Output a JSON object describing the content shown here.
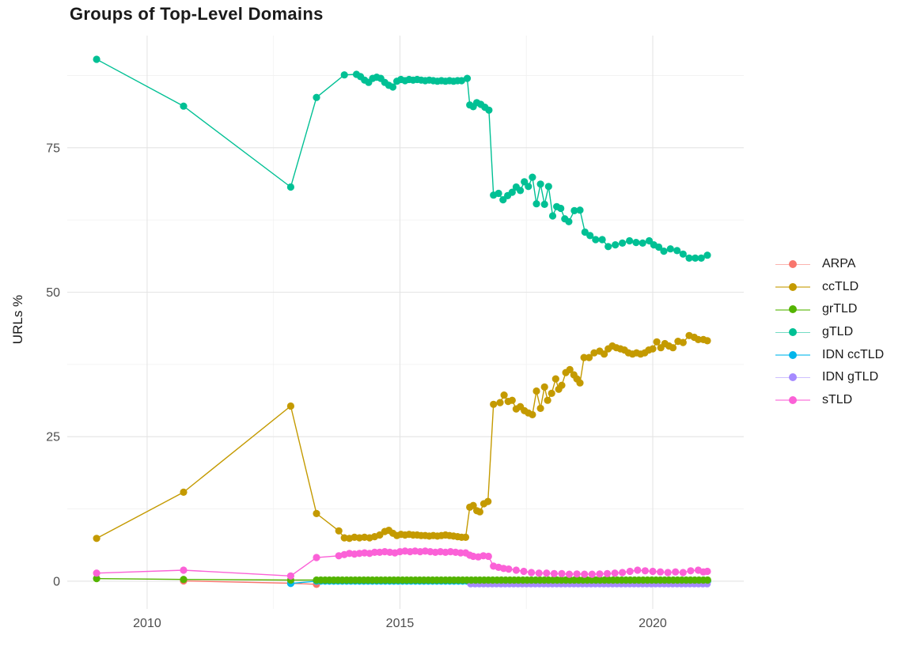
{
  "title": "Groups of Top-Level Domains",
  "chart_data": {
    "type": "line",
    "title": "Groups of Top-Level Domains",
    "xlabel": "",
    "ylabel": "URLs %",
    "grid": "on",
    "background": "#ffffff",
    "major_grid_color": "#e4e4e4",
    "minor_grid_color": "#f1f1f1",
    "axis_text_color": "#4d4d4d",
    "x_axis": {
      "range": [
        2008.42,
        2021.8
      ],
      "tick_values": [
        2010,
        2015,
        2020
      ],
      "tick_labels": [
        "2010",
        "2015",
        "2020"
      ],
      "minor_ticks": [
        2012.5,
        2017.5
      ]
    },
    "y_axis": {
      "range": [
        -4.8,
        94.4
      ],
      "tick_values": [
        0,
        25,
        50,
        75
      ],
      "tick_labels": [
        "0",
        "25",
        "50",
        "75"
      ],
      "minor_ticks": [
        12.5,
        37.5,
        62.5,
        87.5
      ]
    },
    "legend_position": "right",
    "series": [
      {
        "name": "ARPA",
        "color": "#F8766D",
        "points": [
          [
            2010.72,
            0.05
          ],
          [
            2012.84,
            -0.35
          ],
          [
            2013.35,
            -0.55
          ]
        ]
      },
      {
        "name": "ccTLD",
        "color": "#C49A00",
        "points": [
          [
            2009.0,
            7.4
          ],
          [
            2010.72,
            15.4
          ],
          [
            2012.84,
            30.3
          ],
          [
            2013.35,
            11.7
          ],
          [
            2013.79,
            8.7
          ],
          [
            2013.9,
            7.5
          ],
          [
            2014.0,
            7.4
          ],
          [
            2014.1,
            7.6
          ],
          [
            2014.2,
            7.5
          ],
          [
            2014.3,
            7.6
          ],
          [
            2014.4,
            7.5
          ],
          [
            2014.5,
            7.7
          ],
          [
            2014.6,
            8.0
          ],
          [
            2014.7,
            8.6
          ],
          [
            2014.78,
            8.8
          ],
          [
            2014.86,
            8.3
          ],
          [
            2014.94,
            7.9
          ],
          [
            2015.02,
            8.1
          ],
          [
            2015.1,
            8.0
          ],
          [
            2015.18,
            8.1
          ],
          [
            2015.26,
            8.0
          ],
          [
            2015.34,
            8.0
          ],
          [
            2015.42,
            7.9
          ],
          [
            2015.5,
            7.9
          ],
          [
            2015.58,
            7.8
          ],
          [
            2015.66,
            7.9
          ],
          [
            2015.74,
            7.8
          ],
          [
            2015.82,
            7.9
          ],
          [
            2015.9,
            8.0
          ],
          [
            2015.98,
            7.9
          ],
          [
            2016.06,
            7.8
          ],
          [
            2016.14,
            7.7
          ],
          [
            2016.22,
            7.6
          ],
          [
            2016.3,
            7.6
          ],
          [
            2016.38,
            12.8
          ],
          [
            2016.45,
            13.1
          ],
          [
            2016.52,
            12.2
          ],
          [
            2016.58,
            12.0
          ],
          [
            2016.66,
            13.4
          ],
          [
            2016.74,
            13.8
          ],
          [
            2016.85,
            30.6
          ],
          [
            2016.98,
            30.9
          ],
          [
            2017.06,
            32.2
          ],
          [
            2017.14,
            31.1
          ],
          [
            2017.22,
            31.3
          ],
          [
            2017.3,
            29.8
          ],
          [
            2017.38,
            30.2
          ],
          [
            2017.46,
            29.5
          ],
          [
            2017.54,
            29.1
          ],
          [
            2017.62,
            28.8
          ],
          [
            2017.7,
            32.9
          ],
          [
            2017.78,
            29.9
          ],
          [
            2017.86,
            33.6
          ],
          [
            2017.92,
            31.3
          ],
          [
            2018.0,
            32.5
          ],
          [
            2018.08,
            35.0
          ],
          [
            2018.14,
            33.2
          ],
          [
            2018.2,
            33.9
          ],
          [
            2018.28,
            36.1
          ],
          [
            2018.36,
            36.6
          ],
          [
            2018.44,
            35.7
          ],
          [
            2018.5,
            35.0
          ],
          [
            2018.56,
            34.3
          ],
          [
            2018.64,
            38.7
          ],
          [
            2018.74,
            38.7
          ],
          [
            2018.84,
            39.5
          ],
          [
            2018.95,
            39.8
          ],
          [
            2019.04,
            39.3
          ],
          [
            2019.12,
            40.2
          ],
          [
            2019.2,
            40.7
          ],
          [
            2019.28,
            40.4
          ],
          [
            2019.36,
            40.2
          ],
          [
            2019.44,
            40.0
          ],
          [
            2019.52,
            39.5
          ],
          [
            2019.6,
            39.3
          ],
          [
            2019.68,
            39.5
          ],
          [
            2019.76,
            39.3
          ],
          [
            2019.84,
            39.5
          ],
          [
            2019.92,
            40.0
          ],
          [
            2020.0,
            40.2
          ],
          [
            2020.08,
            41.4
          ],
          [
            2020.16,
            40.4
          ],
          [
            2020.24,
            41.1
          ],
          [
            2020.32,
            40.7
          ],
          [
            2020.4,
            40.4
          ],
          [
            2020.5,
            41.5
          ],
          [
            2020.6,
            41.3
          ],
          [
            2020.72,
            42.5
          ],
          [
            2020.82,
            42.2
          ],
          [
            2020.9,
            41.8
          ],
          [
            2021.0,
            41.8
          ],
          [
            2021.08,
            41.6
          ]
        ]
      },
      {
        "name": "grTLD",
        "color": "#53B400",
        "points": [
          [
            2009.0,
            0.45
          ],
          [
            2010.72,
            0.3
          ],
          [
            2012.84,
            0.2
          ]
        ],
        "runs": [
          {
            "from": 2013.35,
            "to": 2021.1,
            "step": 0.085,
            "value": 0.2
          }
        ]
      },
      {
        "name": "gTLD",
        "color": "#00C094",
        "points": [
          [
            2009.0,
            90.3
          ],
          [
            2010.72,
            82.2
          ],
          [
            2012.84,
            68.2
          ],
          [
            2013.35,
            83.7
          ],
          [
            2013.9,
            87.6
          ],
          [
            2014.14,
            87.7
          ],
          [
            2014.22,
            87.3
          ],
          [
            2014.3,
            86.7
          ],
          [
            2014.38,
            86.3
          ],
          [
            2014.46,
            87.0
          ],
          [
            2014.54,
            87.2
          ],
          [
            2014.62,
            87.0
          ],
          [
            2014.7,
            86.3
          ],
          [
            2014.78,
            85.8
          ],
          [
            2014.86,
            85.5
          ],
          [
            2014.94,
            86.5
          ],
          [
            2015.02,
            86.8
          ],
          [
            2015.1,
            86.6
          ],
          [
            2015.18,
            86.8
          ],
          [
            2015.26,
            86.7
          ],
          [
            2015.34,
            86.8
          ],
          [
            2015.42,
            86.7
          ],
          [
            2015.5,
            86.6
          ],
          [
            2015.58,
            86.7
          ],
          [
            2015.66,
            86.6
          ],
          [
            2015.74,
            86.5
          ],
          [
            2015.82,
            86.6
          ],
          [
            2015.9,
            86.5
          ],
          [
            2015.98,
            86.6
          ],
          [
            2016.06,
            86.5
          ],
          [
            2016.14,
            86.6
          ],
          [
            2016.22,
            86.6
          ],
          [
            2016.33,
            87.0
          ],
          [
            2016.38,
            82.4
          ],
          [
            2016.45,
            82.1
          ],
          [
            2016.52,
            82.8
          ],
          [
            2016.6,
            82.5
          ],
          [
            2016.68,
            82.0
          ],
          [
            2016.76,
            81.5
          ],
          [
            2016.85,
            66.8
          ],
          [
            2016.95,
            67.1
          ],
          [
            2017.04,
            66.0
          ],
          [
            2017.13,
            66.7
          ],
          [
            2017.22,
            67.3
          ],
          [
            2017.3,
            68.2
          ],
          [
            2017.38,
            67.6
          ],
          [
            2017.46,
            69.1
          ],
          [
            2017.54,
            68.3
          ],
          [
            2017.62,
            69.9
          ],
          [
            2017.7,
            65.3
          ],
          [
            2017.78,
            68.7
          ],
          [
            2017.86,
            65.2
          ],
          [
            2017.94,
            68.3
          ],
          [
            2018.02,
            63.2
          ],
          [
            2018.1,
            64.8
          ],
          [
            2018.18,
            64.5
          ],
          [
            2018.26,
            62.7
          ],
          [
            2018.34,
            62.2
          ],
          [
            2018.45,
            64.1
          ],
          [
            2018.56,
            64.2
          ],
          [
            2018.66,
            60.4
          ],
          [
            2018.76,
            59.8
          ],
          [
            2018.87,
            59.1
          ],
          [
            2019.0,
            59.1
          ],
          [
            2019.12,
            57.9
          ],
          [
            2019.26,
            58.2
          ],
          [
            2019.4,
            58.5
          ],
          [
            2019.54,
            58.9
          ],
          [
            2019.67,
            58.6
          ],
          [
            2019.8,
            58.5
          ],
          [
            2019.93,
            58.9
          ],
          [
            2020.02,
            58.2
          ],
          [
            2020.12,
            57.8
          ],
          [
            2020.22,
            57.1
          ],
          [
            2020.35,
            57.5
          ],
          [
            2020.48,
            57.2
          ],
          [
            2020.6,
            56.6
          ],
          [
            2020.72,
            55.9
          ],
          [
            2020.84,
            55.9
          ],
          [
            2020.96,
            55.9
          ],
          [
            2021.08,
            56.4
          ]
        ]
      },
      {
        "name": "IDN ccTLD",
        "color": "#00B6EB",
        "points": [
          [
            2012.84,
            -0.4
          ]
        ],
        "runs": [
          {
            "from": 2013.35,
            "to": 2021.1,
            "step": 0.085,
            "value": 0.0
          }
        ]
      },
      {
        "name": "IDN gTLD",
        "color": "#A58AFF",
        "points": [],
        "runs": [
          {
            "from": 2016.4,
            "to": 2021.1,
            "step": 0.085,
            "value": -0.45
          }
        ]
      },
      {
        "name": "sTLD",
        "color": "#FB61D7",
        "points": [
          [
            2009.0,
            1.4
          ],
          [
            2010.72,
            1.9
          ],
          [
            2012.84,
            0.9
          ],
          [
            2013.35,
            4.1
          ],
          [
            2013.79,
            4.4
          ],
          [
            2013.9,
            4.6
          ],
          [
            2014.0,
            4.8
          ],
          [
            2014.1,
            4.7
          ],
          [
            2014.2,
            4.8
          ],
          [
            2014.3,
            4.9
          ],
          [
            2014.4,
            4.8
          ],
          [
            2014.5,
            5.0
          ],
          [
            2014.6,
            5.0
          ],
          [
            2014.7,
            5.1
          ],
          [
            2014.8,
            5.0
          ],
          [
            2014.9,
            4.9
          ],
          [
            2015.0,
            5.1
          ],
          [
            2015.1,
            5.2
          ],
          [
            2015.2,
            5.1
          ],
          [
            2015.3,
            5.2
          ],
          [
            2015.4,
            5.1
          ],
          [
            2015.5,
            5.2
          ],
          [
            2015.6,
            5.1
          ],
          [
            2015.7,
            5.0
          ],
          [
            2015.8,
            5.1
          ],
          [
            2015.9,
            5.0
          ],
          [
            2016.0,
            5.1
          ],
          [
            2016.1,
            5.0
          ],
          [
            2016.2,
            4.9
          ],
          [
            2016.3,
            4.9
          ],
          [
            2016.38,
            4.5
          ],
          [
            2016.45,
            4.3
          ],
          [
            2016.55,
            4.2
          ],
          [
            2016.65,
            4.4
          ],
          [
            2016.75,
            4.3
          ],
          [
            2016.85,
            2.6
          ],
          [
            2016.95,
            2.4
          ],
          [
            2017.05,
            2.2
          ],
          [
            2017.15,
            2.1
          ],
          [
            2017.3,
            1.9
          ],
          [
            2017.45,
            1.7
          ],
          [
            2017.6,
            1.5
          ],
          [
            2017.75,
            1.4
          ],
          [
            2017.9,
            1.4
          ],
          [
            2018.05,
            1.3
          ],
          [
            2018.2,
            1.3
          ],
          [
            2018.35,
            1.2
          ],
          [
            2018.5,
            1.25
          ],
          [
            2018.65,
            1.2
          ],
          [
            2018.8,
            1.2
          ],
          [
            2018.95,
            1.25
          ],
          [
            2019.1,
            1.3
          ],
          [
            2019.25,
            1.4
          ],
          [
            2019.4,
            1.5
          ],
          [
            2019.55,
            1.7
          ],
          [
            2019.7,
            1.9
          ],
          [
            2019.85,
            1.8
          ],
          [
            2020.0,
            1.7
          ],
          [
            2020.15,
            1.6
          ],
          [
            2020.3,
            1.5
          ],
          [
            2020.45,
            1.6
          ],
          [
            2020.6,
            1.5
          ],
          [
            2020.75,
            1.8
          ],
          [
            2020.9,
            1.9
          ],
          [
            2021.0,
            1.6
          ],
          [
            2021.08,
            1.7
          ]
        ]
      }
    ]
  }
}
